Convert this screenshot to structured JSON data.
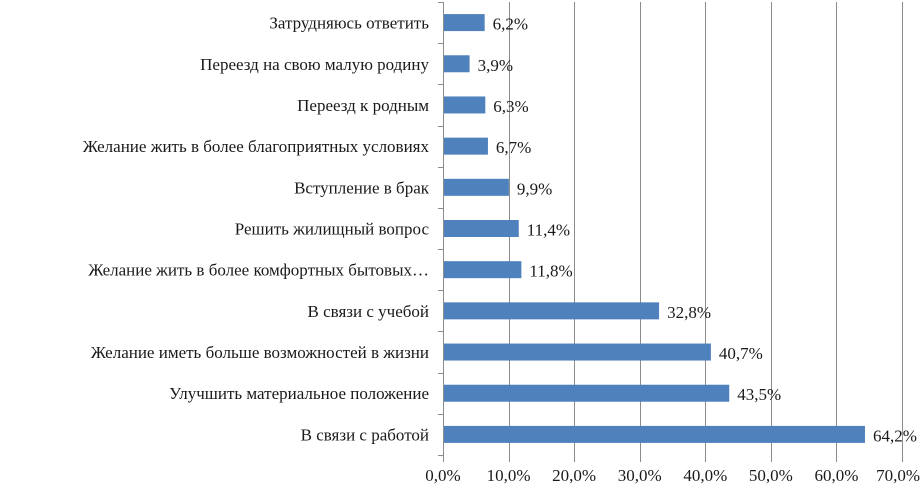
{
  "chart_data": {
    "type": "bar",
    "orientation": "horizontal",
    "title": "",
    "xlabel": "",
    "ylabel": "",
    "xlim": [
      0,
      70
    ],
    "x_ticks": [
      "0,0%",
      "10,0%",
      "20,0%",
      "30,0%",
      "40,0%",
      "50,0%",
      "60,0%",
      "70,0%"
    ],
    "grid": true,
    "bar_color": "#4F81BD",
    "categories": [
      "Затрудняюсь ответить",
      "Переезд на свою малую родину",
      "Переезд к родным",
      "Желание жить в более благоприятных условиях",
      "Вступление в брак",
      "Решить жилищный вопрос",
      "Желание жить в более комфортных бытовых…",
      "В связи с учебой",
      "Желание иметь больше возможностей в жизни",
      "Улучшить материальное положение",
      "В связи с работой"
    ],
    "values": [
      6.2,
      3.9,
      6.3,
      6.7,
      9.9,
      11.4,
      11.8,
      32.8,
      40.7,
      43.5,
      64.2
    ],
    "value_labels": [
      "6,2%",
      "3,9%",
      "6,3%",
      "6,7%",
      "9,9%",
      "11,4%",
      "11,8%",
      "32,8%",
      "40,7%",
      "43,5%",
      "64,2%"
    ]
  }
}
